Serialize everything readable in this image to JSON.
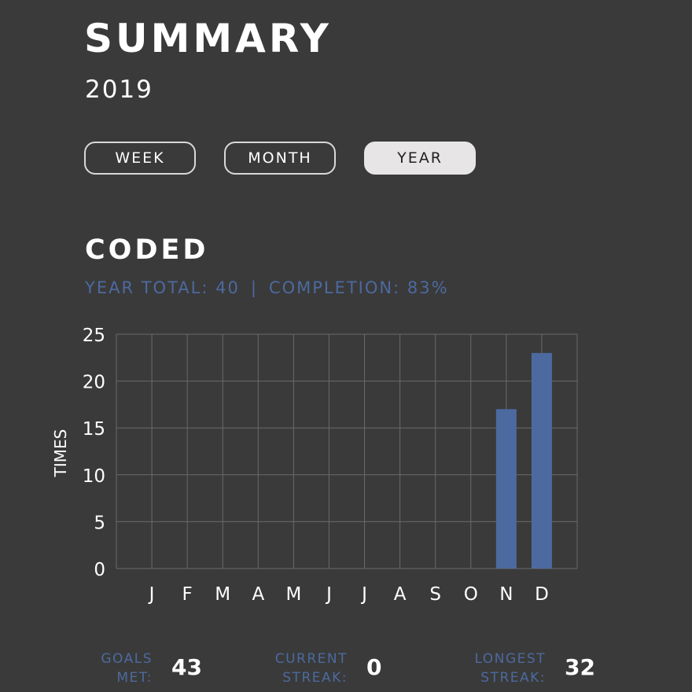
{
  "header": {
    "title": "SUMMARY",
    "year": "2019"
  },
  "tabs": [
    {
      "label": "WEEK",
      "active": false
    },
    {
      "label": "MONTH",
      "active": false
    },
    {
      "label": "YEAR",
      "active": true
    }
  ],
  "section": {
    "title": "CODED",
    "year_total_text": "YEAR TOTAL: 40",
    "separator": "|",
    "completion_text": "COMPLETION: 83%"
  },
  "colors": {
    "background": "#3a3a3a",
    "accent": "#4c6a9f",
    "bar": "#4c6a9f",
    "grid": "#6a6a6a"
  },
  "chart_data": {
    "type": "bar",
    "categories": [
      "J",
      "F",
      "M",
      "A",
      "M",
      "J",
      "J",
      "A",
      "S",
      "O",
      "N",
      "D"
    ],
    "values": [
      0,
      0,
      0,
      0,
      0,
      0,
      0,
      0,
      0,
      0,
      17,
      23
    ],
    "ylabel": "TIMES",
    "ylim": [
      0,
      25
    ],
    "yticks": [
      0,
      5,
      10,
      15,
      20,
      25
    ],
    "grid": true
  },
  "footer": {
    "goals_met": {
      "label_line1": "GOALS",
      "label_line2": "MET:",
      "value": "43"
    },
    "current_streak": {
      "label_line1": "CURRENT",
      "label_line2": "STREAK:",
      "value": "0"
    },
    "longest_streak": {
      "label_line1": "LONGEST",
      "label_line2": "STREAK:",
      "value": "32"
    }
  }
}
